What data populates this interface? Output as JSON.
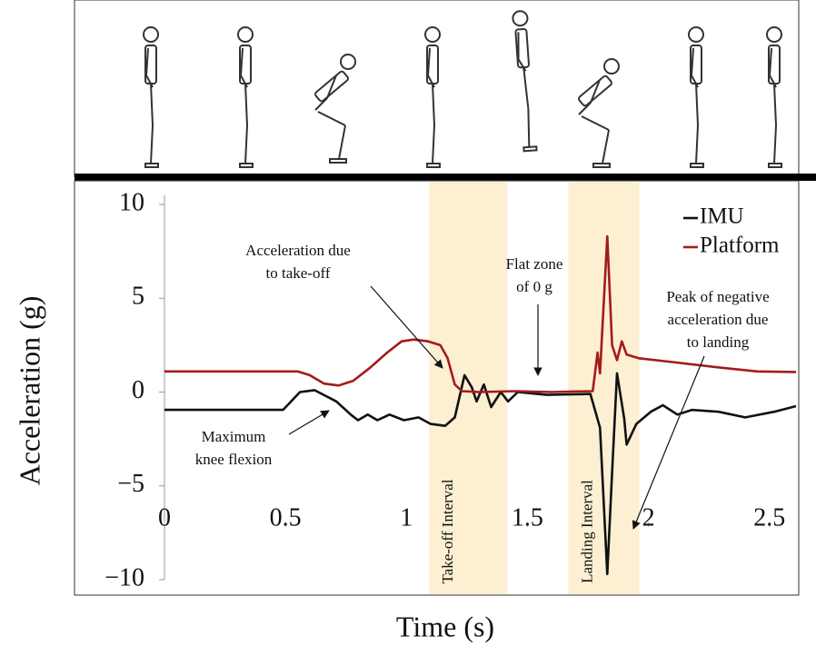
{
  "chart_data": {
    "type": "line",
    "xlabel": "Time (s)",
    "ylabel": "Acceleration (g)",
    "xlim": [
      0,
      2.61
    ],
    "ylim": [
      -10,
      10
    ],
    "xticks": [
      0,
      0.5,
      1,
      1.5,
      2,
      2.5
    ],
    "yticks": [
      10,
      5,
      0,
      {
        "value": -5,
        "label": "−5"
      },
      {
        "value": -10,
        "label": "−10"
      }
    ],
    "legend": "upper right",
    "grid": false,
    "series": [
      {
        "name": "IMU",
        "color": "#111111",
        "x": [
          0,
          0.49,
          0.56,
          0.62,
          0.71,
          0.77,
          0.8,
          0.84,
          0.88,
          0.93,
          0.99,
          1.05,
          1.1,
          1.16,
          1.2,
          1.24,
          1.27,
          1.29,
          1.32,
          1.35,
          1.39,
          1.42,
          1.46,
          1.58,
          1.76,
          1.8,
          1.83,
          1.85,
          1.87,
          1.9,
          1.91,
          1.95,
          2.01,
          2.06,
          2.12,
          2.18,
          2.29,
          2.4,
          2.52,
          2.61
        ],
        "values": [
          -0.95,
          -0.95,
          0,
          0.1,
          -0.5,
          -1.2,
          -1.5,
          -1.2,
          -1.5,
          -1.2,
          -1.5,
          -1.35,
          -1.7,
          -1.8,
          -1.35,
          0.9,
          0.25,
          -0.5,
          0.4,
          -0.8,
          0,
          -0.5,
          0,
          -0.15,
          -0.1,
          -1.9,
          -9.7,
          -4.3,
          1.0,
          -1.4,
          -2.8,
          -1.7,
          -1.05,
          -0.7,
          -1.2,
          -0.95,
          -1.05,
          -1.35,
          -1.05,
          -0.75
        ]
      },
      {
        "name": "Platform",
        "color": "#a31b1b",
        "x": [
          0,
          0.55,
          0.6,
          0.66,
          0.72,
          0.78,
          0.85,
          0.92,
          0.98,
          1.03,
          1.09,
          1.14,
          1.17,
          1.2,
          1.23,
          1.3,
          1.45,
          1.6,
          1.77,
          1.79,
          1.8,
          1.83,
          1.85,
          1.87,
          1.89,
          1.91,
          1.96,
          2.1,
          2.3,
          2.45,
          2.61
        ],
        "values": [
          1.1,
          1.1,
          0.9,
          0.45,
          0.35,
          0.6,
          1.3,
          2.1,
          2.7,
          2.8,
          2.7,
          2.5,
          1.8,
          0.4,
          0.05,
          0,
          0.05,
          0,
          0.05,
          2.1,
          1.0,
          8.3,
          2.5,
          1.7,
          2.7,
          2.0,
          1.8,
          1.6,
          1.3,
          1.1,
          1.07
        ]
      }
    ],
    "shaded_intervals": [
      {
        "label": "Take-off Interval",
        "xrange": [
          1.094,
          1.417
        ],
        "color": "#fcefd2"
      },
      {
        "label": "Landing Interval",
        "xrange": [
          1.669,
          1.962
        ],
        "color": "#fcefd2"
      }
    ],
    "annotations": [
      {
        "lines": [
          "Acceleration due",
          "to take-off"
        ]
      },
      {
        "lines": [
          "Flat zone",
          "of 0 g"
        ]
      },
      {
        "lines": [
          "Peak of negative",
          "acceleration due",
          "to landing"
        ]
      },
      {
        "lines": [
          "Maximum",
          "knee flexion"
        ]
      }
    ]
  }
}
